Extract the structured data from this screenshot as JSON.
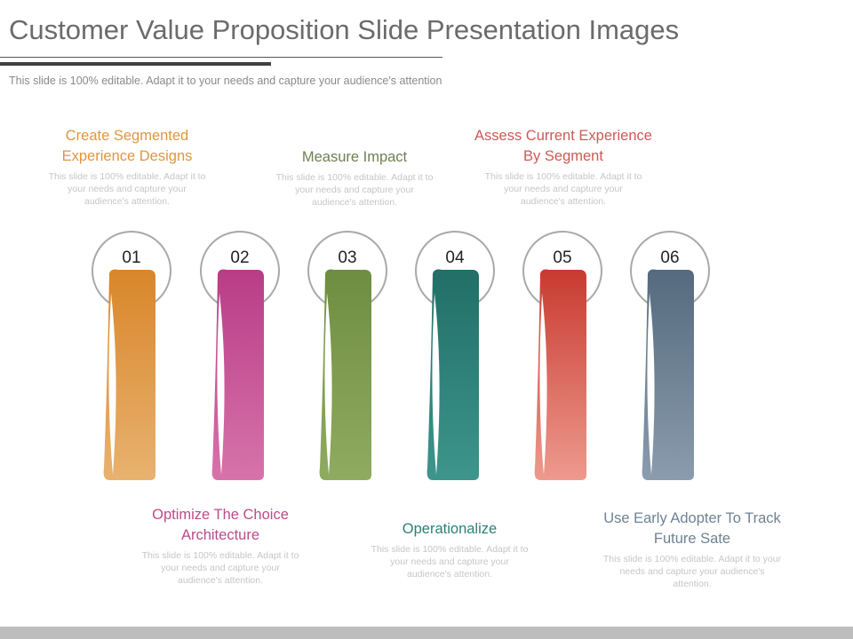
{
  "slide": {
    "title": "Customer Value Proposition Slide Presentation Images",
    "subtitle": "This slide is 100% editable. Adapt it to your needs and capture your audience's attention"
  },
  "steps": [
    {
      "number": "01",
      "heading": "Create Segmented Experience Designs",
      "body": "This slide is 100% editable. Adapt it to your needs and capture your audience's attention.",
      "color": "#e0963c",
      "color_dark": "#d9862a",
      "color_light": "#e8b26f",
      "heading_color": "#e0963c"
    },
    {
      "number": "02",
      "heading": "Optimize The Choice Architecture",
      "body": "This slide is 100% editable. Adapt it to your needs and capture your audience's attention.",
      "color": "#c94d94",
      "color_dark": "#b93c86",
      "color_light": "#d773ab",
      "heading_color": "#bd4a8c"
    },
    {
      "number": "03",
      "heading": "Measure Impact",
      "body": "This slide is 100% editable. Adapt it to your needs and capture your audience's attention.",
      "color": "#7b9a4c",
      "color_dark": "#6f8d40",
      "color_light": "#8fab5f",
      "heading_color": "#6f7f52"
    },
    {
      "number": "04",
      "heading": "Operationalize",
      "body": "This slide is 100% editable. Adapt it to your needs and capture your audience's attention.",
      "color": "#2b8077",
      "color_dark": "#216f67",
      "color_light": "#3d958b",
      "heading_color": "#2b8077"
    },
    {
      "number": "05",
      "heading": "Assess Current Experience By Segment",
      "body": "This slide is 100% editable. Adapt it to your needs and capture your audience's attention.",
      "color": "#e46a60",
      "color_dark": "#c83a30",
      "color_light": "#ee9a8f",
      "heading_color": "#cc5a55"
    },
    {
      "number": "06",
      "heading": "Use Early Adopter To Track Future Sate",
      "body": "This slide is 100% editable. Adapt it to your needs and capture your audience's attention.",
      "color": "#6e8295",
      "color_dark": "#556a7e",
      "color_light": "#8a9cad",
      "heading_color": "#6f8294"
    }
  ]
}
